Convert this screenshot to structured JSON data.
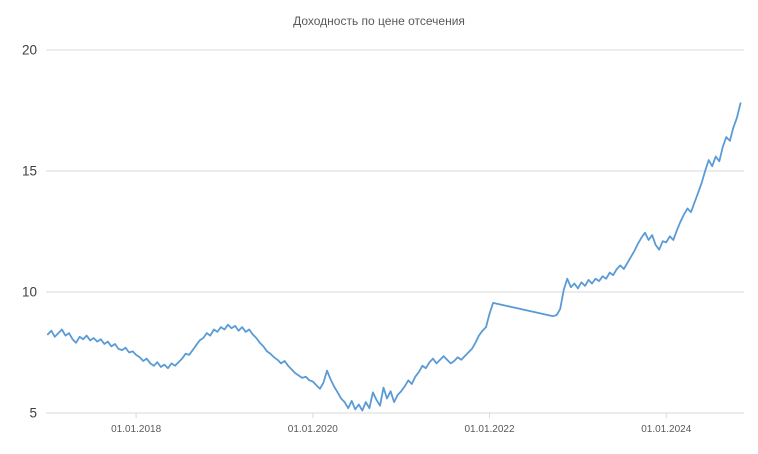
{
  "chart_data": {
    "type": "line",
    "title": "Доходность по цене отсечения",
    "xlabel": "",
    "ylabel": "",
    "legend": "none",
    "grid": "horizontal",
    "line_color": "#5b9bd5",
    "grid_color": "#d9d9d9",
    "title_color": "#595959",
    "ytick_label_color": "#404040",
    "xtick_label_color": "#595959",
    "ylim": [
      5,
      20
    ],
    "xlim": [
      2016.98,
      2024.88
    ],
    "yticks": [
      5,
      10,
      15,
      20
    ],
    "xticks": [
      {
        "value": 2018,
        "label": "01.01.2018"
      },
      {
        "value": 2020,
        "label": "01.01.2020"
      },
      {
        "value": 2022,
        "label": "01.01.2022"
      },
      {
        "value": 2024,
        "label": "01.01.2024"
      }
    ],
    "points": [
      [
        2017.0,
        8.25
      ],
      [
        2017.04,
        8.4
      ],
      [
        2017.08,
        8.15
      ],
      [
        2017.12,
        8.3
      ],
      [
        2017.16,
        8.45
      ],
      [
        2017.2,
        8.2
      ],
      [
        2017.24,
        8.3
      ],
      [
        2017.28,
        8.05
      ],
      [
        2017.32,
        7.9
      ],
      [
        2017.36,
        8.15
      ],
      [
        2017.4,
        8.05
      ],
      [
        2017.44,
        8.2
      ],
      [
        2017.48,
        8.0
      ],
      [
        2017.52,
        8.1
      ],
      [
        2017.56,
        7.95
      ],
      [
        2017.6,
        8.05
      ],
      [
        2017.64,
        7.85
      ],
      [
        2017.68,
        7.95
      ],
      [
        2017.72,
        7.75
      ],
      [
        2017.76,
        7.85
      ],
      [
        2017.8,
        7.65
      ],
      [
        2017.84,
        7.6
      ],
      [
        2017.88,
        7.7
      ],
      [
        2017.92,
        7.5
      ],
      [
        2017.96,
        7.55
      ],
      [
        2018.0,
        7.4
      ],
      [
        2018.04,
        7.3
      ],
      [
        2018.08,
        7.15
      ],
      [
        2018.12,
        7.25
      ],
      [
        2018.16,
        7.05
      ],
      [
        2018.2,
        6.95
      ],
      [
        2018.24,
        7.1
      ],
      [
        2018.28,
        6.9
      ],
      [
        2018.32,
        7.0
      ],
      [
        2018.36,
        6.85
      ],
      [
        2018.4,
        7.05
      ],
      [
        2018.44,
        6.95
      ],
      [
        2018.48,
        7.1
      ],
      [
        2018.52,
        7.25
      ],
      [
        2018.56,
        7.45
      ],
      [
        2018.6,
        7.4
      ],
      [
        2018.64,
        7.6
      ],
      [
        2018.68,
        7.8
      ],
      [
        2018.72,
        8.0
      ],
      [
        2018.76,
        8.1
      ],
      [
        2018.8,
        8.3
      ],
      [
        2018.84,
        8.2
      ],
      [
        2018.88,
        8.45
      ],
      [
        2018.92,
        8.35
      ],
      [
        2018.96,
        8.55
      ],
      [
        2019.0,
        8.45
      ],
      [
        2019.04,
        8.65
      ],
      [
        2019.08,
        8.5
      ],
      [
        2019.12,
        8.6
      ],
      [
        2019.16,
        8.4
      ],
      [
        2019.2,
        8.55
      ],
      [
        2019.24,
        8.35
      ],
      [
        2019.28,
        8.45
      ],
      [
        2019.32,
        8.25
      ],
      [
        2019.36,
        8.1
      ],
      [
        2019.4,
        7.9
      ],
      [
        2019.44,
        7.75
      ],
      [
        2019.48,
        7.55
      ],
      [
        2019.52,
        7.45
      ],
      [
        2019.56,
        7.3
      ],
      [
        2019.6,
        7.2
      ],
      [
        2019.64,
        7.05
      ],
      [
        2019.68,
        7.15
      ],
      [
        2019.72,
        6.95
      ],
      [
        2019.76,
        6.8
      ],
      [
        2019.8,
        6.65
      ],
      [
        2019.84,
        6.55
      ],
      [
        2019.88,
        6.45
      ],
      [
        2019.92,
        6.5
      ],
      [
        2019.96,
        6.35
      ],
      [
        2020.0,
        6.3
      ],
      [
        2020.04,
        6.15
      ],
      [
        2020.08,
        6.0
      ],
      [
        2020.12,
        6.25
      ],
      [
        2020.16,
        6.75
      ],
      [
        2020.2,
        6.4
      ],
      [
        2020.24,
        6.1
      ],
      [
        2020.28,
        5.85
      ],
      [
        2020.32,
        5.6
      ],
      [
        2020.36,
        5.45
      ],
      [
        2020.4,
        5.2
      ],
      [
        2020.44,
        5.5
      ],
      [
        2020.48,
        5.15
      ],
      [
        2020.52,
        5.35
      ],
      [
        2020.56,
        5.1
      ],
      [
        2020.6,
        5.45
      ],
      [
        2020.64,
        5.2
      ],
      [
        2020.68,
        5.85
      ],
      [
        2020.72,
        5.55
      ],
      [
        2020.76,
        5.3
      ],
      [
        2020.8,
        6.05
      ],
      [
        2020.84,
        5.6
      ],
      [
        2020.88,
        5.9
      ],
      [
        2020.92,
        5.45
      ],
      [
        2020.96,
        5.75
      ],
      [
        2021.0,
        5.9
      ],
      [
        2021.04,
        6.1
      ],
      [
        2021.08,
        6.35
      ],
      [
        2021.12,
        6.2
      ],
      [
        2021.16,
        6.5
      ],
      [
        2021.2,
        6.7
      ],
      [
        2021.24,
        6.95
      ],
      [
        2021.28,
        6.85
      ],
      [
        2021.32,
        7.1
      ],
      [
        2021.36,
        7.25
      ],
      [
        2021.4,
        7.05
      ],
      [
        2021.44,
        7.2
      ],
      [
        2021.48,
        7.35
      ],
      [
        2021.52,
        7.2
      ],
      [
        2021.56,
        7.05
      ],
      [
        2021.6,
        7.15
      ],
      [
        2021.64,
        7.3
      ],
      [
        2021.68,
        7.2
      ],
      [
        2021.72,
        7.35
      ],
      [
        2021.76,
        7.5
      ],
      [
        2021.8,
        7.65
      ],
      [
        2021.84,
        7.9
      ],
      [
        2021.88,
        8.2
      ],
      [
        2021.92,
        8.4
      ],
      [
        2021.96,
        8.55
      ],
      [
        2022.0,
        9.1
      ],
      [
        2022.04,
        9.55
      ],
      [
        2022.72,
        9.0
      ],
      [
        2022.76,
        9.05
      ],
      [
        2022.8,
        9.3
      ],
      [
        2022.84,
        10.1
      ],
      [
        2022.88,
        10.55
      ],
      [
        2022.92,
        10.2
      ],
      [
        2022.96,
        10.35
      ],
      [
        2023.0,
        10.15
      ],
      [
        2023.04,
        10.4
      ],
      [
        2023.08,
        10.25
      ],
      [
        2023.12,
        10.5
      ],
      [
        2023.16,
        10.35
      ],
      [
        2023.2,
        10.55
      ],
      [
        2023.24,
        10.45
      ],
      [
        2023.28,
        10.65
      ],
      [
        2023.32,
        10.55
      ],
      [
        2023.36,
        10.8
      ],
      [
        2023.4,
        10.7
      ],
      [
        2023.44,
        10.95
      ],
      [
        2023.48,
        11.1
      ],
      [
        2023.52,
        10.95
      ],
      [
        2023.56,
        11.2
      ],
      [
        2023.6,
        11.45
      ],
      [
        2023.64,
        11.7
      ],
      [
        2023.68,
        12.0
      ],
      [
        2023.72,
        12.25
      ],
      [
        2023.76,
        12.45
      ],
      [
        2023.8,
        12.15
      ],
      [
        2023.84,
        12.35
      ],
      [
        2023.88,
        11.95
      ],
      [
        2023.92,
        11.75
      ],
      [
        2023.96,
        12.1
      ],
      [
        2024.0,
        12.05
      ],
      [
        2024.04,
        12.3
      ],
      [
        2024.08,
        12.15
      ],
      [
        2024.12,
        12.55
      ],
      [
        2024.16,
        12.9
      ],
      [
        2024.2,
        13.2
      ],
      [
        2024.24,
        13.45
      ],
      [
        2024.28,
        13.3
      ],
      [
        2024.32,
        13.7
      ],
      [
        2024.36,
        14.1
      ],
      [
        2024.4,
        14.5
      ],
      [
        2024.44,
        15.0
      ],
      [
        2024.48,
        15.45
      ],
      [
        2024.52,
        15.2
      ],
      [
        2024.56,
        15.6
      ],
      [
        2024.6,
        15.4
      ],
      [
        2024.64,
        16.0
      ],
      [
        2024.68,
        16.4
      ],
      [
        2024.72,
        16.25
      ],
      [
        2024.76,
        16.8
      ],
      [
        2024.8,
        17.2
      ],
      [
        2024.84,
        17.8
      ]
    ]
  }
}
